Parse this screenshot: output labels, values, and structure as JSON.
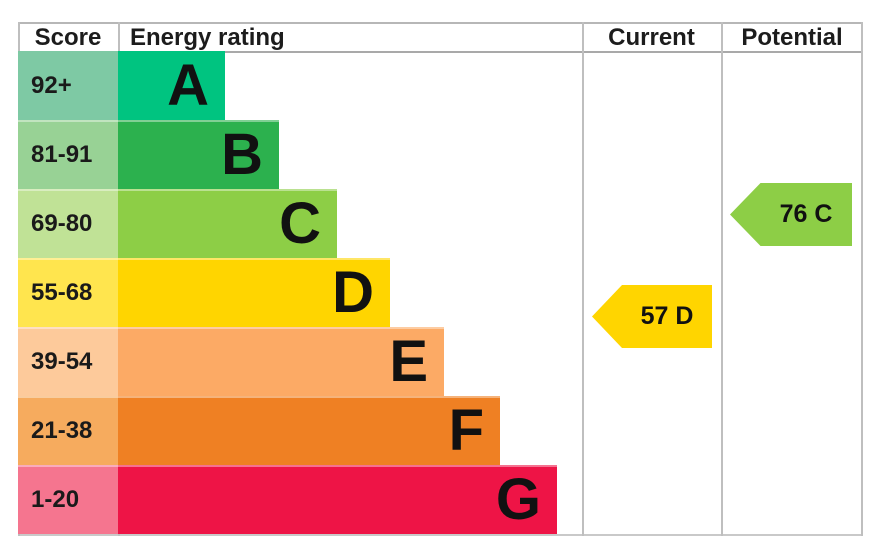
{
  "header": {
    "score": "Score",
    "energy_rating": "Energy rating",
    "current": "Current",
    "potential": "Potential"
  },
  "chart_data": {
    "type": "bar",
    "subtype": "epc-energy-rating",
    "orientation": "horizontal",
    "title": "",
    "columns": [
      "Score",
      "Energy rating",
      "Current",
      "Potential"
    ],
    "categories": [
      "A",
      "B",
      "C",
      "D",
      "E",
      "F",
      "G"
    ],
    "bands": [
      {
        "letter": "A",
        "score_range": "92+",
        "min": 92,
        "max": 100,
        "bar_color": "#00c480",
        "score_cell_color": "#7ec9a4",
        "bar_width_pct": 23.0
      },
      {
        "letter": "B",
        "score_range": "81-91",
        "min": 81,
        "max": 91,
        "bar_color": "#2cb14e",
        "score_cell_color": "#98d295",
        "bar_width_pct": 34.7
      },
      {
        "letter": "C",
        "score_range": "69-80",
        "min": 69,
        "max": 80,
        "bar_color": "#8dce46",
        "score_cell_color": "#c0e296",
        "bar_width_pct": 47.2
      },
      {
        "letter": "D",
        "score_range": "55-68",
        "min": 55,
        "max": 68,
        "bar_color": "#ffd500",
        "score_cell_color": "#ffe54e",
        "bar_width_pct": 58.6
      },
      {
        "letter": "E",
        "score_range": "39-54",
        "min": 39,
        "max": 54,
        "bar_color": "#fcaa65",
        "score_cell_color": "#fdca9b",
        "bar_width_pct": 70.3
      },
      {
        "letter": "F",
        "score_range": "21-38",
        "min": 21,
        "max": 38,
        "bar_color": "#ef8023",
        "score_cell_color": "#f6ab5e",
        "bar_width_pct": 82.3
      },
      {
        "letter": "G",
        "score_range": "1-20",
        "min": 1,
        "max": 20,
        "bar_color": "#ee1446",
        "score_cell_color": "#f5758f",
        "bar_width_pct": 94.6
      }
    ],
    "markers": {
      "current": {
        "label": "57 D",
        "score": 57,
        "band": "D",
        "color": "#ffd500"
      },
      "potential": {
        "label": "76 C",
        "score": 76,
        "band": "C",
        "color": "#8dce46"
      }
    },
    "legend": "none",
    "grid": "column-dividers"
  }
}
